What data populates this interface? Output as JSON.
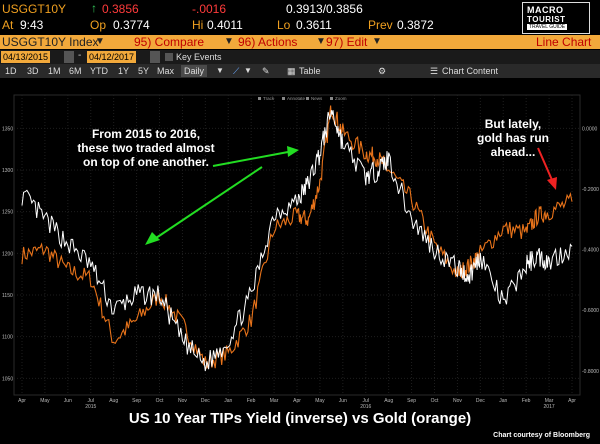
{
  "header": {
    "ticker": "USGGT10Y",
    "change_arrow": "↑",
    "last": "0.3856",
    "change": "-.0016",
    "bid_ask": "0.3913/0.3856",
    "at_label": "At",
    "time": "9:43",
    "op_label": "Op",
    "open": "0.3774",
    "hi_label": "Hi",
    "high": "0.4011",
    "lo_label": "Lo",
    "low": "0.3611",
    "prev_label": "Prev",
    "prev": "0.3872",
    "logo_line1": "MACRO",
    "logo_line2": "TOURIST",
    "logo_line3": "TRAVEL GUIDE"
  },
  "toolbar": {
    "index_label": "USGGT10Y Index",
    "compare": "95) Compare",
    "actions": "96) Actions",
    "edit": "97) Edit",
    "view_label": "Line Chart",
    "date_start": "04/13/2015",
    "date_end": "04/12/2017",
    "key_events": "Key Events",
    "periods": [
      "1D",
      "3D",
      "1M",
      "6M",
      "YTD",
      "1Y",
      "5Y",
      "Max"
    ],
    "frequency": "Daily",
    "table_label": "Table",
    "chart_content": "Chart Content"
  },
  "legend": [
    "Track",
    "Annotate",
    "News",
    "Zoom"
  ],
  "annotations": {
    "left": [
      "From 2015 to 2016,",
      "these two traded almost",
      "on top of one another."
    ],
    "right": [
      "But lately,",
      "gold has run",
      "ahead..."
    ]
  },
  "caption": "US 10 Year TIPs Yield (inverse) vs Gold (orange)",
  "credit": "Chart courtesy of Bloomberg",
  "colors": {
    "gold": "#e8731a",
    "tips": "#ffffff",
    "header_bar": "#f2a93b",
    "arrow_green": "#22dd22",
    "arrow_red": "#ee2222"
  },
  "chart_data": {
    "type": "line",
    "x_ticks_month": [
      "Apr",
      "May",
      "Jun",
      "Jul",
      "Aug",
      "Sep",
      "Oct",
      "Nov",
      "Dec",
      "Jan",
      "Feb",
      "Mar",
      "Apr",
      "May",
      "Jun",
      "Jul",
      "Aug",
      "Sep",
      "Oct",
      "Nov",
      "Dec",
      "Jan",
      "Feb",
      "Mar",
      "Apr"
    ],
    "x_ticks_year": [
      "2015",
      "2016",
      "2017"
    ],
    "left_axis_ticks": [
      "1050",
      "1100",
      "1150",
      "1200",
      "1250",
      "1300",
      "1350"
    ],
    "right_axis_ticks": [
      "0.0000",
      "-0.2000",
      "-0.4000",
      "-0.6000",
      "-0.8000"
    ],
    "left_ylim": [
      1030,
      1390
    ],
    "right_ylim": [
      -0.88,
      0.11
    ],
    "series": [
      {
        "axis": "left",
        "t": [
          0,
          1,
          2,
          3,
          4,
          5,
          6,
          7,
          8,
          9,
          10,
          11,
          12,
          12.5,
          13,
          13.5,
          14,
          15,
          15.5,
          16,
          17,
          18,
          19,
          19.5,
          20,
          21,
          22,
          22.5,
          23,
          24
        ],
        "values": [
          1198,
          1205,
          1180,
          1170,
          1095,
          1120,
          1150,
          1115,
          1068,
          1080,
          1120,
          1230,
          1245,
          1240,
          1285,
          1375,
          1345,
          1320,
          1315,
          1300,
          1265,
          1210,
          1175,
          1185,
          1200,
          1230,
          1225,
          1245,
          1250,
          1262
        ]
      },
      {
        "axis": "right",
        "t": [
          0,
          1,
          2,
          3,
          4,
          5,
          6,
          7,
          8,
          9,
          10,
          11,
          12,
          12.5,
          13,
          13.5,
          14,
          15,
          15.5,
          16,
          17,
          18,
          19,
          19.5,
          20,
          21,
          22,
          22.5,
          23,
          24
        ],
        "values": [
          -0.22,
          -0.3,
          -0.38,
          -0.45,
          -0.6,
          -0.55,
          -0.55,
          -0.7,
          -0.78,
          -0.7,
          -0.55,
          -0.28,
          -0.24,
          -0.18,
          -0.08,
          0.06,
          -0.05,
          -0.16,
          -0.14,
          -0.1,
          -0.3,
          -0.4,
          -0.46,
          -0.49,
          -0.42,
          -0.58,
          -0.45,
          -0.42,
          -0.44,
          -0.39
        ]
      }
    ]
  }
}
